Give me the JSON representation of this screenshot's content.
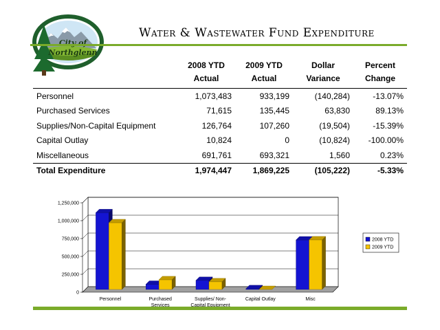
{
  "logo": {
    "line1": "City of",
    "line2": "Northglenn"
  },
  "title": "Water & Wastewater Fund Expenditure",
  "table": {
    "headers": [
      {
        "line1": "",
        "line2": ""
      },
      {
        "line1": "2008 YTD",
        "line2": "Actual"
      },
      {
        "line1": "2009 YTD",
        "line2": "Actual"
      },
      {
        "line1": "Dollar",
        "line2": "Variance"
      },
      {
        "line1": "Percent",
        "line2": "Change"
      }
    ],
    "rows": [
      [
        "Personnel",
        "1,073,483",
        "933,199",
        "(140,284)",
        "-13.07%"
      ],
      [
        "Purchased Services",
        "71,615",
        "135,445",
        "63,830",
        "89.13%"
      ],
      [
        "Supplies/Non-Capital Equipment",
        "126,764",
        "107,260",
        "(19,504)",
        "-15.39%"
      ],
      [
        "Capital Outlay",
        "10,824",
        "0",
        "(10,824)",
        "-100.00%"
      ],
      [
        "Miscellaneous",
        "691,761",
        "693,321",
        "1,560",
        "0.23%"
      ]
    ],
    "total": [
      "Total Expenditure",
      "1,974,447",
      "1,869,225",
      "(105,222)",
      "-5.33%"
    ]
  },
  "chart_data": {
    "type": "bar",
    "categories": [
      [
        "Personnel"
      ],
      [
        "Purchased",
        "Services"
      ],
      [
        "Supplies/ Non-",
        "Capital Equipment"
      ],
      [
        "Capital Outlay"
      ],
      [
        "Misc"
      ]
    ],
    "series": [
      {
        "name": "2008 YTD",
        "values": [
          1073483,
          71615,
          126764,
          10824,
          691761
        ],
        "color": "#1414d2"
      },
      {
        "name": "2009 YTD",
        "values": [
          933199,
          135445,
          107260,
          0,
          693321
        ],
        "color": "#f5c400"
      }
    ],
    "yticks": [
      "0",
      "250,000",
      "500,000",
      "750,000",
      "1,000,000",
      "1,250,000"
    ],
    "ylim": [
      0,
      1250000
    ],
    "grid": true,
    "legend_position": "right",
    "style": "3d-column"
  }
}
